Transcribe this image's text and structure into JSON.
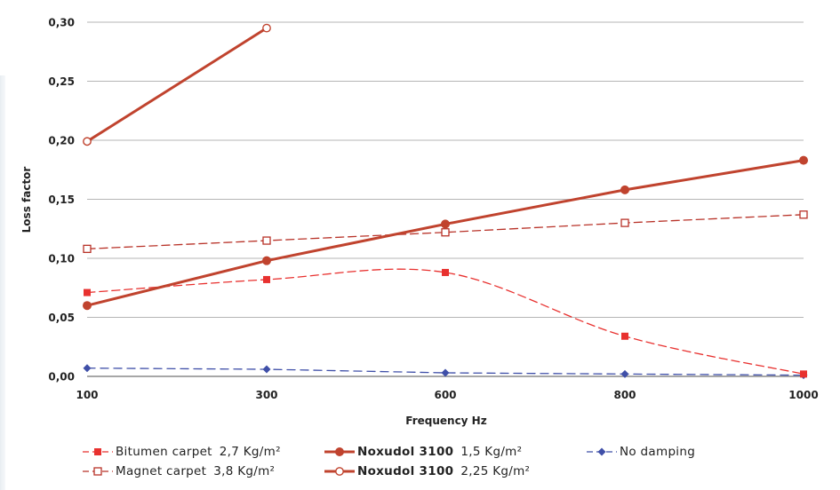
{
  "chart_data": {
    "type": "line",
    "title": "",
    "xlabel": "Frequency Hz",
    "ylabel": "Loss factor",
    "x_tick_labels": [
      "100",
      "300",
      "600",
      "800",
      "1000"
    ],
    "y_tick_labels": [
      "0,00",
      "0,05",
      "0,10",
      "0,15",
      "0,20",
      "0,25",
      "0,30"
    ],
    "ylim": [
      0,
      0.3
    ],
    "grid": "horizontal",
    "legend_position": "bottom",
    "series": [
      {
        "name": "Bitumen carpet",
        "detail": "2,7 Kg/m²",
        "name_bold": false,
        "color": "#e8312f",
        "line": "dashed-smooth",
        "marker": "filled-square",
        "x": [
          "100",
          "300",
          "600",
          "800",
          "1000"
        ],
        "values": [
          0.071,
          0.082,
          0.088,
          0.034,
          0.002
        ]
      },
      {
        "name": "Magnet carpet",
        "detail": "3,8 Kg/m²",
        "name_bold": false,
        "color": "#b83228",
        "line": "dashed",
        "marker": "open-square",
        "x": [
          "100",
          "300",
          "600",
          "800",
          "1000"
        ],
        "values": [
          0.108,
          0.115,
          0.122,
          0.13,
          0.137
        ]
      },
      {
        "name": "Noxudol 3100",
        "detail": "1,5 Kg/m²",
        "name_bold": true,
        "color": "#c0432e",
        "line": "solid",
        "marker": "filled-circle",
        "x": [
          "100",
          "300",
          "600",
          "800",
          "1000"
        ],
        "values": [
          0.06,
          0.098,
          0.129,
          0.158,
          0.183
        ]
      },
      {
        "name": "Noxudol 3100",
        "detail": "2,25 Kg/m²",
        "name_bold": true,
        "color": "#c0432e",
        "line": "solid",
        "marker": "open-circle",
        "x": [
          "100",
          "300"
        ],
        "values": [
          0.199,
          0.295
        ]
      },
      {
        "name": "No damping",
        "detail": "",
        "name_bold": false,
        "color": "#3f4fa8",
        "line": "dashed",
        "marker": "filled-diamond",
        "x": [
          "100",
          "300",
          "600",
          "800",
          "1000"
        ],
        "values": [
          0.007,
          0.006,
          0.003,
          0.002,
          0.001
        ]
      }
    ]
  }
}
